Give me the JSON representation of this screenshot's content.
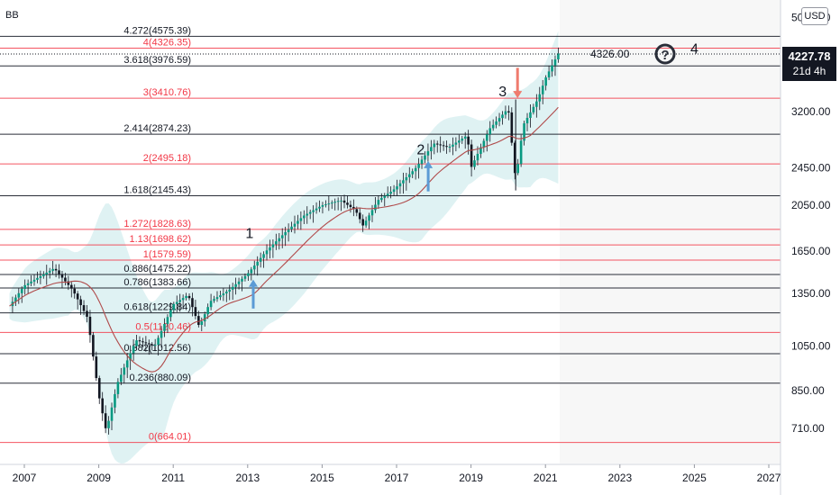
{
  "title": "BB",
  "currency_button": "USD",
  "price_badge": {
    "value": "4227.78",
    "time": "21d 4h"
  },
  "target_price": "4326.00",
  "question_icon": "question-circle-icon",
  "colors": {
    "black_line": "#131722",
    "red_line": "#f23645",
    "band_fill": "#d1ecee",
    "candle_up": "#089981",
    "candle_down": "#131722",
    "ma_line": "#b04a4a",
    "arrow_up": "#5b9bd5",
    "arrow_down": "#ef7b6e",
    "shaded_bg": "#f5f5f5"
  },
  "chart_data": {
    "type": "line",
    "series_kind": "candlestick price chart with bollinger band and moving average (approximate)",
    "price_axis_labels": [
      "5000.00",
      "3200.00",
      "2450.00",
      "2050.00",
      "1650.00",
      "1350.00",
      "1050.00",
      "850.00",
      "710.00"
    ],
    "time_axis_labels": [
      "2007",
      "2009",
      "2011",
      "2013",
      "2015",
      "2017",
      "2019",
      "2021",
      "2023",
      "2025",
      "2027"
    ],
    "fib_levels": [
      {
        "label": "4.272(4575.39)",
        "price": 4575.39,
        "color": "black"
      },
      {
        "label": "4(4326.35)",
        "price": 4326.35,
        "color": "red"
      },
      {
        "label": "3.618(3976.59)",
        "price": 3976.59,
        "color": "black"
      },
      {
        "label": "3(3410.76)",
        "price": 3410.76,
        "color": "red"
      },
      {
        "label": "2.414(2874.23)",
        "price": 2874.23,
        "color": "black"
      },
      {
        "label": "2(2495.18)",
        "price": 2495.18,
        "color": "red"
      },
      {
        "label": "1.618(2145.43)",
        "price": 2145.43,
        "color": "black"
      },
      {
        "label": "1.272(1828.63)",
        "price": 1828.63,
        "color": "red"
      },
      {
        "label": "1.13(1698.62)",
        "price": 1698.62,
        "color": "red"
      },
      {
        "label": "1(1579.59)",
        "price": 1579.59,
        "color": "red"
      },
      {
        "label": "0.886(1475.22)",
        "price": 1475.22,
        "color": "black"
      },
      {
        "label": "0.786(1383.66)",
        "price": 1383.66,
        "color": "black"
      },
      {
        "label": "0.618(1229.84)",
        "price": 1229.84,
        "color": "black"
      },
      {
        "label": "0.5(1120.46)",
        "price": 1120.46,
        "color": "red"
      },
      {
        "label": "0.382(1012.56)",
        "price": 1012.56,
        "color": "black"
      },
      {
        "label": "0.236(880.09)",
        "price": 880.09,
        "color": "black"
      },
      {
        "label": "0(664.01)",
        "price": 664.01,
        "color": "red"
      }
    ],
    "wave_labels": [
      {
        "label": "1",
        "year": 2013.05,
        "price": 1800
      },
      {
        "label": "2",
        "year": 2017.65,
        "price": 2680
      },
      {
        "label": "3",
        "year": 2019.85,
        "price": 3530
      },
      {
        "label": "4",
        "year": 2025.0,
        "price": 4330
      }
    ],
    "arrows": [
      {
        "dir": "up",
        "year": 2013.15,
        "price_from": 1255,
        "price_to": 1440
      },
      {
        "dir": "up",
        "year": 2017.85,
        "price_from": 2190,
        "price_to": 2530
      },
      {
        "dir": "down",
        "year": 2020.25,
        "price_from": 3940,
        "price_to": 3410
      }
    ],
    "price_path": [
      [
        2006.6,
        1270
      ],
      [
        2007.0,
        1400
      ],
      [
        2007.8,
        1520
      ],
      [
        2008.3,
        1370
      ],
      [
        2008.7,
        1200
      ],
      [
        2009.0,
        830
      ],
      [
        2009.2,
        700
      ],
      [
        2009.5,
        880
      ],
      [
        2010.0,
        1080
      ],
      [
        2010.5,
        1050
      ],
      [
        2011.0,
        1280
      ],
      [
        2011.4,
        1340
      ],
      [
        2011.7,
        1150
      ],
      [
        2012.0,
        1300
      ],
      [
        2012.5,
        1370
      ],
      [
        2013.0,
        1480
      ],
      [
        2013.5,
        1650
      ],
      [
        2014.0,
        1800
      ],
      [
        2014.5,
        1950
      ],
      [
        2015.0,
        2050
      ],
      [
        2015.5,
        2100
      ],
      [
        2015.9,
        2000
      ],
      [
        2016.1,
        1860
      ],
      [
        2016.5,
        2100
      ],
      [
        2016.9,
        2200
      ],
      [
        2017.5,
        2440
      ],
      [
        2018.0,
        2750
      ],
      [
        2018.4,
        2700
      ],
      [
        2018.9,
        2860
      ],
      [
        2019.0,
        2450
      ],
      [
        2019.5,
        2950
      ],
      [
        2020.0,
        3250
      ],
      [
        2020.2,
        2300
      ],
      [
        2020.4,
        3000
      ],
      [
        2020.8,
        3400
      ],
      [
        2021.0,
        3750
      ],
      [
        2021.35,
        4227.78
      ]
    ]
  }
}
